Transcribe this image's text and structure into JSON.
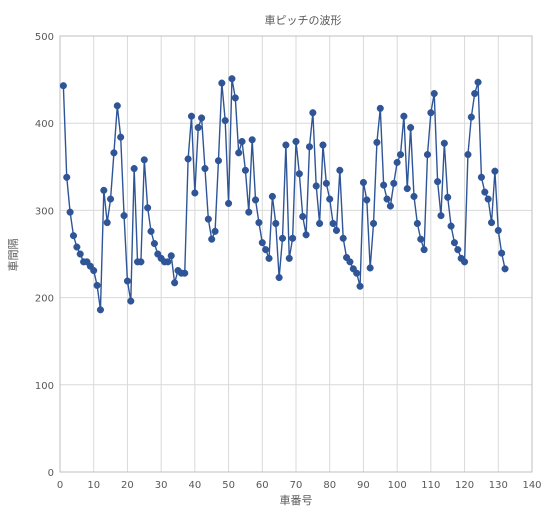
{
  "chart_data": {
    "type": "line",
    "title": "車ピッチの波形",
    "xlabel": "車番号",
    "ylabel": "車間隔",
    "xlim": [
      0,
      140
    ],
    "ylim": [
      0,
      500
    ],
    "x_ticks": [
      0,
      10,
      20,
      30,
      40,
      50,
      60,
      70,
      80,
      90,
      100,
      110,
      120,
      130,
      140
    ],
    "y_ticks": [
      0,
      100,
      200,
      300,
      400,
      500
    ],
    "grid": true,
    "legend": "none",
    "colors": {
      "series": "#2F5597",
      "grid": "#D9D9D9",
      "axis_text": "#595959"
    },
    "series": [
      {
        "x": [
          1,
          2,
          3,
          4,
          5,
          6,
          7,
          8,
          9,
          10,
          11,
          12,
          13,
          14,
          15,
          16,
          17,
          18,
          19,
          20,
          21,
          22,
          23,
          24,
          25,
          26,
          27,
          28,
          29,
          30,
          31,
          32,
          33,
          34,
          35,
          36,
          37,
          38,
          39,
          40,
          41,
          42,
          43,
          44,
          45,
          46,
          47,
          48,
          49,
          50,
          51,
          52,
          53,
          54,
          55,
          56,
          57,
          58,
          59,
          60,
          61,
          62,
          63,
          64,
          65,
          66,
          67,
          68,
          69,
          70,
          71,
          72,
          73,
          74,
          75,
          76,
          77,
          78,
          79,
          80,
          81,
          82,
          83,
          84,
          85,
          86,
          87,
          88,
          89,
          90,
          91,
          92,
          93,
          94,
          95,
          96,
          97,
          98,
          99,
          100,
          101,
          102,
          103,
          104,
          105,
          106,
          107,
          108,
          109,
          110,
          111,
          112,
          113,
          114,
          115,
          116,
          117,
          118,
          119,
          120,
          121,
          122,
          123,
          124,
          125,
          126,
          127,
          128,
          129,
          130,
          131,
          132
        ],
        "y": [
          443,
          338,
          298,
          271,
          258,
          250,
          241,
          241,
          236,
          231,
          214,
          186,
          323,
          286,
          313,
          366,
          420,
          384,
          294,
          219,
          196,
          348,
          241,
          241,
          358,
          303,
          276,
          262,
          250,
          245,
          241,
          241,
          248,
          217,
          231,
          228,
          228,
          359,
          408,
          320,
          395,
          406,
          348,
          290,
          267,
          276,
          357,
          446,
          403,
          308,
          451,
          429,
          366,
          379,
          346,
          298,
          381,
          312,
          286,
          263,
          255,
          245,
          316,
          285,
          223,
          268,
          375,
          245,
          268,
          379,
          342,
          293,
          272,
          373,
          412,
          328,
          285,
          375,
          331,
          313,
          285,
          277,
          346,
          268,
          246,
          241,
          233,
          228,
          213,
          332,
          312,
          234,
          285,
          378,
          417,
          329,
          313,
          305,
          331,
          355,
          364,
          408,
          325,
          395,
          316,
          285,
          267,
          255,
          364,
          412,
          434,
          333,
          294,
          377,
          315,
          282,
          263,
          255,
          245,
          241,
          364,
          407,
          434,
          447,
          338,
          321,
          313,
          286,
          345,
          277,
          251,
          233
        ]
      }
    ]
  }
}
